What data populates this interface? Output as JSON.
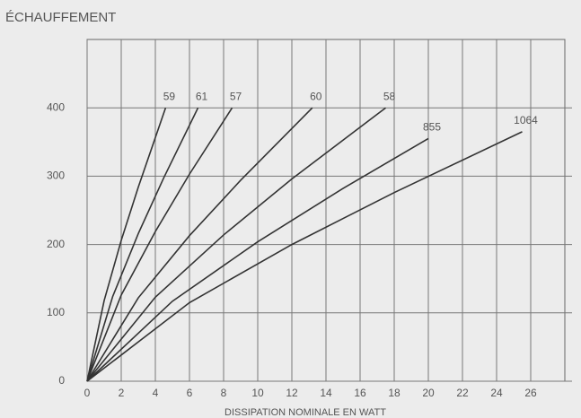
{
  "chart_data": {
    "type": "line",
    "title": "ÉCHAUFFEMENT",
    "xlabel": "DISSIPATION NOMINALE EN WATT",
    "xlim": [
      0,
      28
    ],
    "ylim": [
      0,
      500
    ],
    "xticks": [
      0,
      2,
      4,
      6,
      8,
      10,
      12,
      14,
      16,
      18,
      20,
      22,
      24,
      26
    ],
    "yticks": [
      0,
      100,
      200,
      300,
      400
    ],
    "grid": true,
    "color": "#333333",
    "series": [
      {
        "name": "59",
        "x": [
          0,
          1,
          2,
          3,
          4.6
        ],
        "values": [
          0,
          118,
          206,
          284,
          400
        ]
      },
      {
        "name": "61",
        "x": [
          0,
          1.5,
          3,
          4.5,
          6.5
        ],
        "values": [
          0,
          124,
          216,
          298,
          400
        ]
      },
      {
        "name": "57",
        "x": [
          0,
          2,
          4,
          6,
          8.5
        ],
        "values": [
          0,
          126,
          219,
          303,
          400
        ]
      },
      {
        "name": "60",
        "x": [
          0,
          3,
          6,
          9,
          13.2
        ],
        "values": [
          0,
          122,
          213,
          294,
          400
        ]
      },
      {
        "name": "58",
        "x": [
          0,
          4,
          8,
          12,
          17.5
        ],
        "values": [
          0,
          123,
          214,
          296,
          400
        ]
      },
      {
        "name": "855",
        "x": [
          0,
          5,
          10,
          15,
          20
        ],
        "values": [
          0,
          117,
          204,
          282,
          355
        ]
      },
      {
        "name": "1064",
        "x": [
          0,
          6,
          12,
          18,
          25.5
        ],
        "values": [
          0,
          115,
          200,
          276,
          365
        ]
      }
    ]
  }
}
